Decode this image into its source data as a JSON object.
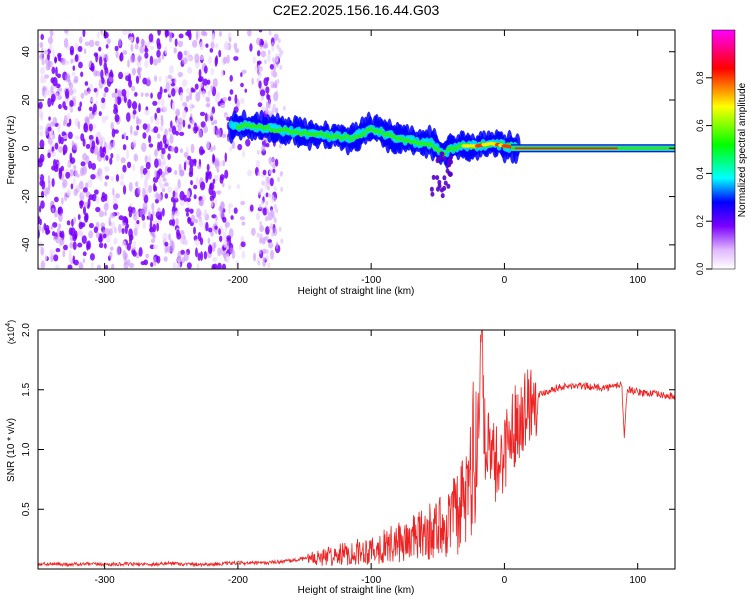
{
  "title": "C2E2.2025.156.16.44.G03",
  "chart_data": [
    {
      "type": "heatmap",
      "title": "C2E2.2025.156.16.44.G03",
      "xlabel": "Height of straight line (km)",
      "ylabel": "Frequency (Hz)",
      "xlim": [
        -350,
        128
      ],
      "ylim": [
        -50,
        49
      ],
      "x_ticks": [
        -300,
        -200,
        -100,
        0,
        100
      ],
      "y_ticks": [
        -40,
        -20,
        0,
        20,
        40
      ],
      "colorbar": {
        "label": "Normalized spectral amplitude",
        "range": [
          0.0,
          1.0
        ],
        "ticks": [
          0.0,
          0.2,
          0.4,
          0.6,
          0.8
        ],
        "tick_labels": [
          "0.0",
          "0.2",
          "0.4",
          "0.6",
          "0.8"
        ],
        "colors": [
          "#ffffff",
          "#e0b8ff",
          "#7a00ff",
          "#0000ff",
          "#00ffff",
          "#00ff00",
          "#ffff00",
          "#ff0000",
          "#ff00ff"
        ]
      },
      "ridge": {
        "x": [
          -205,
          -190,
          -175,
          -160,
          -145,
          -130,
          -115,
          -100,
          -85,
          -70,
          -55,
          -45,
          -35,
          -20,
          -10,
          0,
          10,
          30,
          60,
          100,
          128
        ],
        "frequency": [
          9,
          9.5,
          8,
          7,
          6,
          5,
          4,
          8,
          5,
          3,
          2,
          -2,
          1,
          1,
          2,
          1,
          0,
          0,
          0,
          0,
          0
        ]
      },
      "noise_region_x": [
        -350,
        -170
      ],
      "grid": false
    },
    {
      "type": "line",
      "xlabel": "Height of straight line (km)",
      "ylabel": "SNR (10 * v/v)",
      "y_multiplier": "(x10^4)",
      "xlim": [
        -350,
        128
      ],
      "ylim": [
        0,
        2.0
      ],
      "x_ticks": [
        -300,
        -200,
        -100,
        0,
        100
      ],
      "y_ticks": [
        0.5,
        1.0,
        1.5,
        2.0
      ],
      "y_tick_labels": [
        "0.5",
        "1.0",
        "1.5",
        "2.0"
      ],
      "color": "#ee2222",
      "grid": false,
      "series": [
        {
          "x": [
            -350,
            -320,
            -300,
            -280,
            -260,
            -250,
            -240,
            -220,
            -200,
            -180,
            -160,
            -140,
            -120,
            -100,
            -80,
            -60,
            -50,
            -40,
            -30,
            -25,
            -20,
            -17,
            -15,
            -10,
            -5,
            0,
            5,
            10,
            15,
            20,
            30,
            40,
            50,
            60,
            70,
            80,
            88,
            90,
            92,
            95,
            100,
            110,
            120,
            128
          ],
          "y": [
            0.04,
            0.04,
            0.04,
            0.04,
            0.04,
            0.05,
            0.04,
            0.04,
            0.05,
            0.05,
            0.07,
            0.1,
            0.14,
            0.18,
            0.24,
            0.32,
            0.38,
            0.45,
            0.6,
            0.9,
            1.2,
            2.0,
            1.1,
            0.9,
            0.85,
            1.0,
            1.15,
            1.25,
            1.35,
            1.42,
            1.48,
            1.52,
            1.53,
            1.53,
            1.52,
            1.52,
            1.55,
            1.1,
            1.5,
            1.5,
            1.48,
            1.47,
            1.45,
            1.44
          ]
        }
      ]
    }
  ]
}
